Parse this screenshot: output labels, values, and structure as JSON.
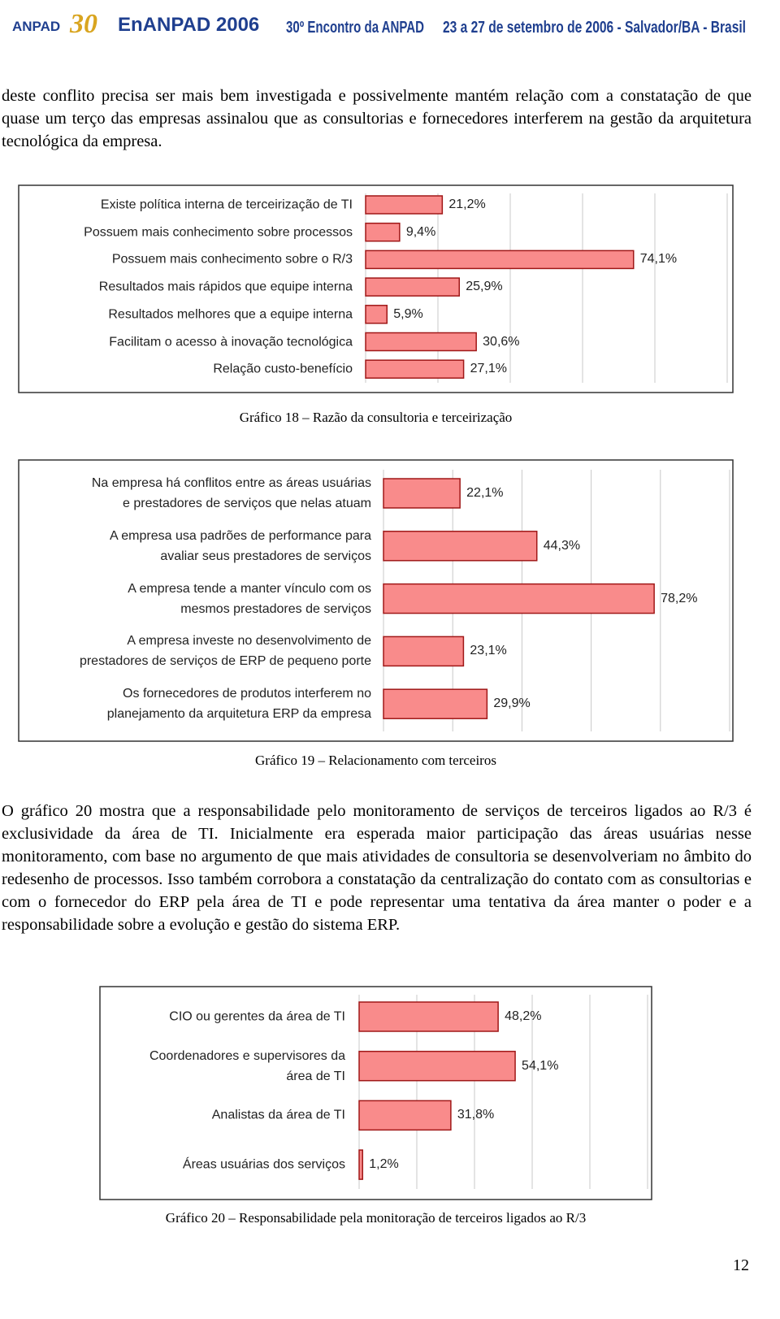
{
  "header": {
    "logo": "ANPAD",
    "logo_years": "30",
    "event": "EnANPAD 2006",
    "meeting": "30º Encontro da ANPAD",
    "dates": "23 a 27 de setembro de 2006 - Salvador/BA - Brasil"
  },
  "paragraphs": [
    "deste conflito precisa ser mais bem investigada e possivelmente mantém relação com a constatação de que quase um terço das empresas assinalou que as consultorias e fornecedores interferem na gestão da arquitetura tecnológica da empresa.",
    "O gráfico 20 mostra que a responsabilidade pelo monitoramento de serviços de terceiros ligados ao R/3 é exclusividade da área de TI. Inicialmente era esperada maior participação das áreas usuárias nesse monitoramento, com base no argumento de que mais atividades de consultoria se desenvolveriam no âmbito do redesenho de processos. Isso também corrobora a constatação da centralização do contato com as consultorias e com o fornecedor do ERP pela área de TI e pode representar uma tentativa da área manter o poder e a responsabilidade sobre a evolução e gestão do sistema ERP."
  ],
  "chart_data": [
    {
      "type": "hbar",
      "caption": "Gráfico 18 – Razão da consultoria e terceirização",
      "categories": [
        "Existe política interna de terceirização de TI",
        "Possuem mais conhecimento sobre processos",
        "Possuem mais conhecimento sobre o R/3",
        "Resultados mais rápidos que equipe interna",
        "Resultados melhores que a equipe interna",
        "Facilitam o acesso à inovação tecnológica",
        "Relação custo-benefício"
      ],
      "values": [
        21.2,
        9.4,
        74.1,
        25.9,
        5.9,
        30.6,
        27.1
      ],
      "value_labels": [
        "21,2%",
        "9,4%",
        "74,1%",
        "25,9%",
        "5,9%",
        "30,6%",
        "27,1%"
      ],
      "color": "#f98b8b",
      "xlim": [
        0,
        100
      ],
      "xticks": [
        0,
        20,
        40,
        60,
        80,
        100
      ],
      "grid": true
    },
    {
      "type": "hbar",
      "caption": "Gráfico 19 – Relacionamento com terceiros",
      "categories": [
        "Na empresa há conflitos entre as áreas usuárias\ne prestadores de serviços que nelas atuam",
        "A empresa usa padrões de performance para\navaliar seus prestadores de serviços",
        "A empresa tende a manter vínculo com os\nmesmos prestadores de serviços",
        "A empresa investe no desenvolvimento de\nprestadores de serviços de ERP de pequeno porte",
        "Os fornecedores de produtos interferem no\nplanejamento da arquitetura ERP da empresa"
      ],
      "values": [
        22.1,
        44.3,
        78.2,
        23.1,
        29.9
      ],
      "value_labels": [
        "22,1%",
        "44,3%",
        "78,2%",
        "23,1%",
        "29,9%"
      ],
      "color": "#f98b8b",
      "xlim": [
        0,
        100
      ],
      "xticks": [
        0,
        20,
        40,
        60,
        80,
        100
      ],
      "grid": true
    },
    {
      "type": "hbar",
      "caption": "Gráfico 20 – Responsabilidade pela monitoração de terceiros ligados ao R/3",
      "categories": [
        "CIO ou gerentes da área de TI",
        "Coordenadores e supervisores da\nárea de TI",
        "Analistas da área de TI",
        "Áreas usuárias dos serviços"
      ],
      "values": [
        48.2,
        54.1,
        31.8,
        1.2
      ],
      "value_labels": [
        "48,2%",
        "54,1%",
        "31,8%",
        "1,2%"
      ],
      "color": "#f98b8b",
      "xlim": [
        0,
        100
      ],
      "xticks": [
        0,
        20,
        40,
        60,
        80,
        100
      ],
      "grid": true
    }
  ],
  "page_number": "12"
}
